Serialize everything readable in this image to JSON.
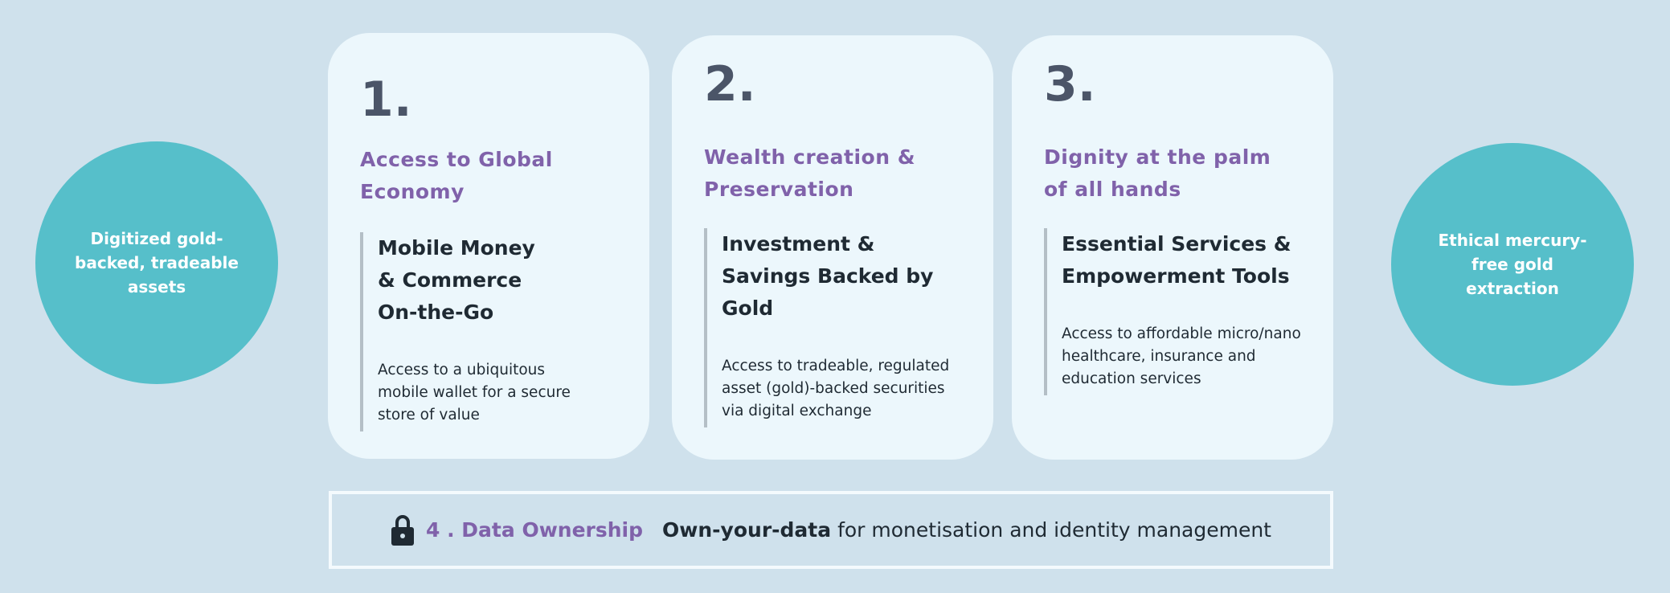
{
  "left_circle": {
    "text": "Digitized gold-backed, tradeable assets"
  },
  "right_circle": {
    "text": "Ethical mercury-free gold extraction"
  },
  "cards": [
    {
      "number": "1.",
      "title": "Access to Global Economy",
      "subtitle": "Mobile Money & Commerce On-the-Go",
      "body": "Access to a ubiquitous mobile wallet for a secure store of value"
    },
    {
      "number": "2.",
      "title": "Wealth creation & Preservation",
      "subtitle": "Investment & Savings Backed by Gold",
      "body": "Access to tradeable, regulated asset (gold)-backed securities via digital exchange"
    },
    {
      "number": "3.",
      "title": "Dignity at the palm of all hands",
      "subtitle": "Essential Services & Empowerment Tools",
      "body": "Access to affordable micro/nano healthcare, insurance and education services"
    }
  ],
  "bottom": {
    "icon": "lock-icon",
    "title": "4 . Data Ownership",
    "emphasis": "Own-your-data",
    "text": "for monetisation and identity management"
  },
  "colors": {
    "background": "#cfe1ec",
    "circle": "#56bfca",
    "card": "#ecf7fc",
    "accent": "#8062aa",
    "number": "#4b5568"
  }
}
